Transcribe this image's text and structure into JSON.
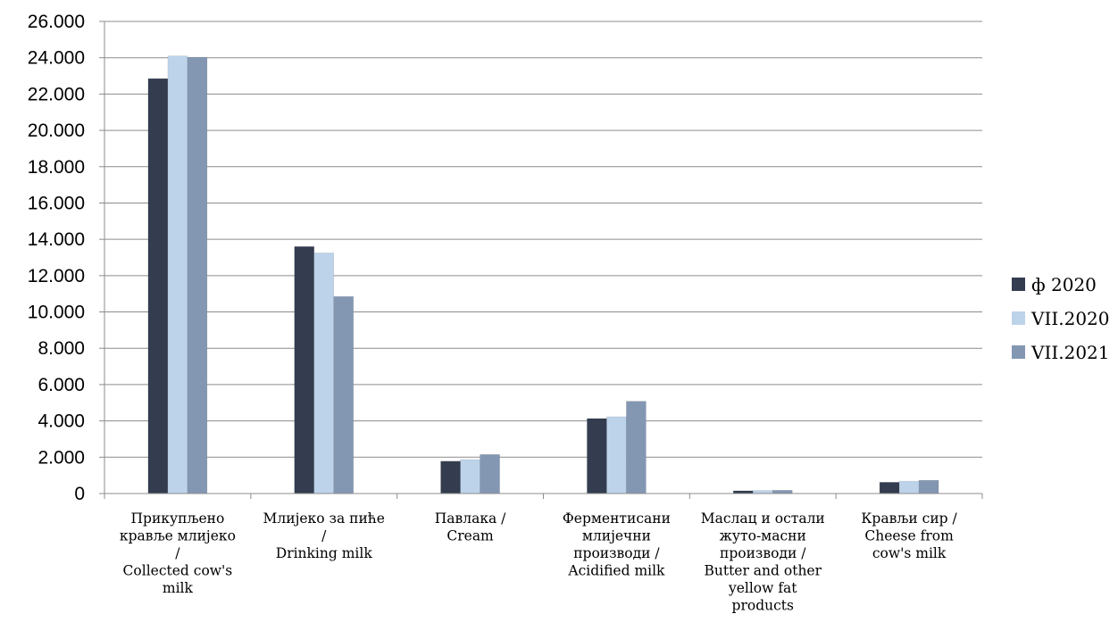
{
  "chart_data": {
    "type": "bar",
    "title": "",
    "xlabel": "",
    "ylabel": "",
    "ylim": [
      0,
      26000
    ],
    "ytick_step": 2000,
    "ytick_labels": [
      "0",
      "2.000",
      "4.000",
      "6.000",
      "8.000",
      "10.000",
      "12.000",
      "14.000",
      "16.000",
      "18.000",
      "20.000",
      "22.000",
      "24.000",
      "26.000"
    ],
    "grid": true,
    "legend_position": "right",
    "categories": [
      [
        "Прикупљено",
        "кравље млијеко",
        "/",
        "Collected cow's",
        "milk"
      ],
      [
        "Млијеко за пиће",
        "/",
        "Drinking milk"
      ],
      [
        "Павлака /",
        "Cream"
      ],
      [
        "Ферментисани",
        "млијечни",
        "производи /",
        "Acidified milk"
      ],
      [
        "Маслац и остали",
        "жуто-масни",
        "производи /",
        "Butter and other",
        "yellow fat",
        "products"
      ],
      [
        "Крављи сир /",
        "Cheese from",
        "cow's milk"
      ]
    ],
    "series": [
      {
        "name": "ф 2020",
        "color": "#333d4f",
        "values": [
          22850,
          13600,
          1780,
          4130,
          150,
          620
        ]
      },
      {
        "name": "VII.2020",
        "color": "#bdd3ea",
        "values": [
          24100,
          13250,
          1870,
          4230,
          170,
          680
        ]
      },
      {
        "name": "VII.2021",
        "color": "#8397b3",
        "values": [
          24030,
          10850,
          2150,
          5080,
          180,
          730
        ]
      }
    ]
  }
}
